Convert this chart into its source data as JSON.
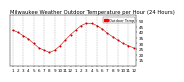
{
  "title": "Milwaukee Weather Outdoor Temperature per Hour (24 Hours)",
  "title_fontsize": 3.8,
  "background_color": "#ffffff",
  "plot_background": "#ffffff",
  "grid_color": "#888888",
  "line_color": "#cc0000",
  "marker_color": "#cc0000",
  "marker_size": 1.2,
  "line_width": 0.4,
  "hours": [
    0,
    1,
    2,
    3,
    4,
    5,
    6,
    7,
    8,
    9,
    10,
    11,
    12,
    13,
    14,
    15,
    16,
    17,
    18,
    19,
    20,
    21,
    22,
    23
  ],
  "temps": [
    42,
    40,
    37,
    34,
    30,
    26,
    24,
    22,
    24,
    28,
    33,
    38,
    42,
    46,
    48,
    48,
    46,
    43,
    39,
    36,
    33,
    30,
    28,
    26
  ],
  "ylim": [
    10,
    55
  ],
  "yticks": [
    15,
    20,
    25,
    30,
    35,
    40,
    45,
    50
  ],
  "ytick_labels": [
    "15",
    "20",
    "25",
    "30",
    "35",
    "40",
    "45",
    "50"
  ],
  "vgrid_positions": [
    0,
    2,
    4,
    6,
    8,
    10,
    12,
    14,
    16,
    18,
    20,
    22
  ],
  "xtick_positions": [
    0,
    1,
    2,
    3,
    4,
    5,
    6,
    7,
    8,
    9,
    10,
    11,
    12,
    13,
    14,
    15,
    16,
    17,
    18,
    19,
    20,
    21,
    22,
    23
  ],
  "xtick_labels": [
    "1",
    "2",
    "3",
    "4",
    "5",
    "6",
    "7",
    "8",
    "9",
    "10",
    "11",
    "12",
    "1",
    "2",
    "3",
    "4",
    "5",
    "6",
    "7",
    "8",
    "9",
    "10",
    "11",
    "12"
  ],
  "legend_label": "Outdoor Temp",
  "legend_color": "#ff0000",
  "tick_fontsize": 3.0
}
